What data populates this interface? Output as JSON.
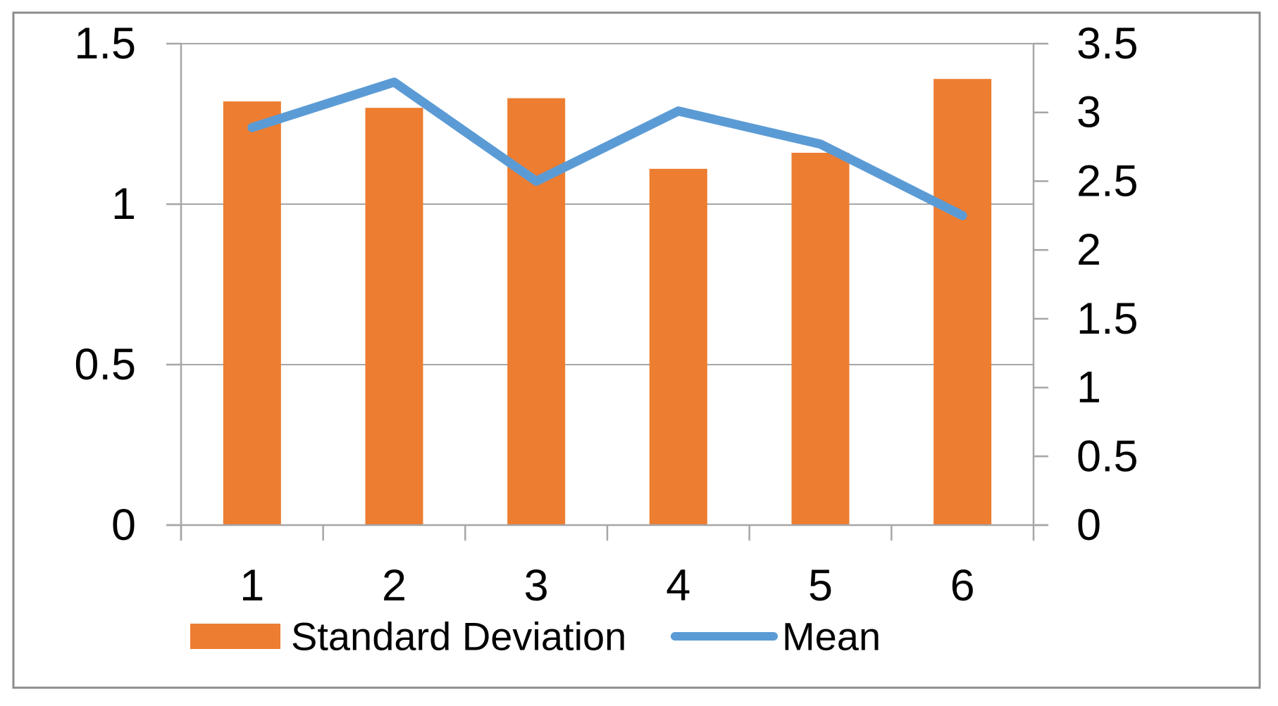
{
  "chart_data": {
    "type": "combo_bar_line",
    "categories": [
      "1",
      "2",
      "3",
      "4",
      "5",
      "6"
    ],
    "series": [
      {
        "name": "Standard Deviation",
        "type": "bar",
        "axis": "left",
        "color": "#ED7D31",
        "values": [
          1.32,
          1.3,
          1.33,
          1.11,
          1.16,
          1.39
        ]
      },
      {
        "name": "Mean",
        "type": "line",
        "axis": "right",
        "color": "#5B9BD5",
        "values": [
          2.89,
          3.22,
          2.5,
          3.01,
          2.77,
          2.25
        ]
      }
    ],
    "left_axis": {
      "min": 0,
      "max": 1.5,
      "tick_labels": [
        "1.5",
        "1",
        "0.5",
        "0"
      ],
      "tick_values": [
        1.5,
        1,
        0.5,
        0
      ]
    },
    "right_axis": {
      "min": 0,
      "max": 3.5,
      "tick_labels": [
        "3.5",
        "3",
        "2.5",
        "2",
        "1.5",
        "1",
        "0.5",
        "0"
      ],
      "tick_values": [
        3.5,
        3,
        2.5,
        2,
        1.5,
        1,
        0.5,
        0
      ]
    },
    "legend": {
      "position": "bottom",
      "entries": [
        "Standard Deviation",
        "Mean"
      ]
    },
    "grid": true
  },
  "colors": {
    "bar": "#ED7D31",
    "line": "#5B9BD5",
    "gridline": "#A6A6A6",
    "axis": "#A6A6A6",
    "text": "#000000",
    "border": "#8C8C8C",
    "background": "#FFFFFF"
  }
}
